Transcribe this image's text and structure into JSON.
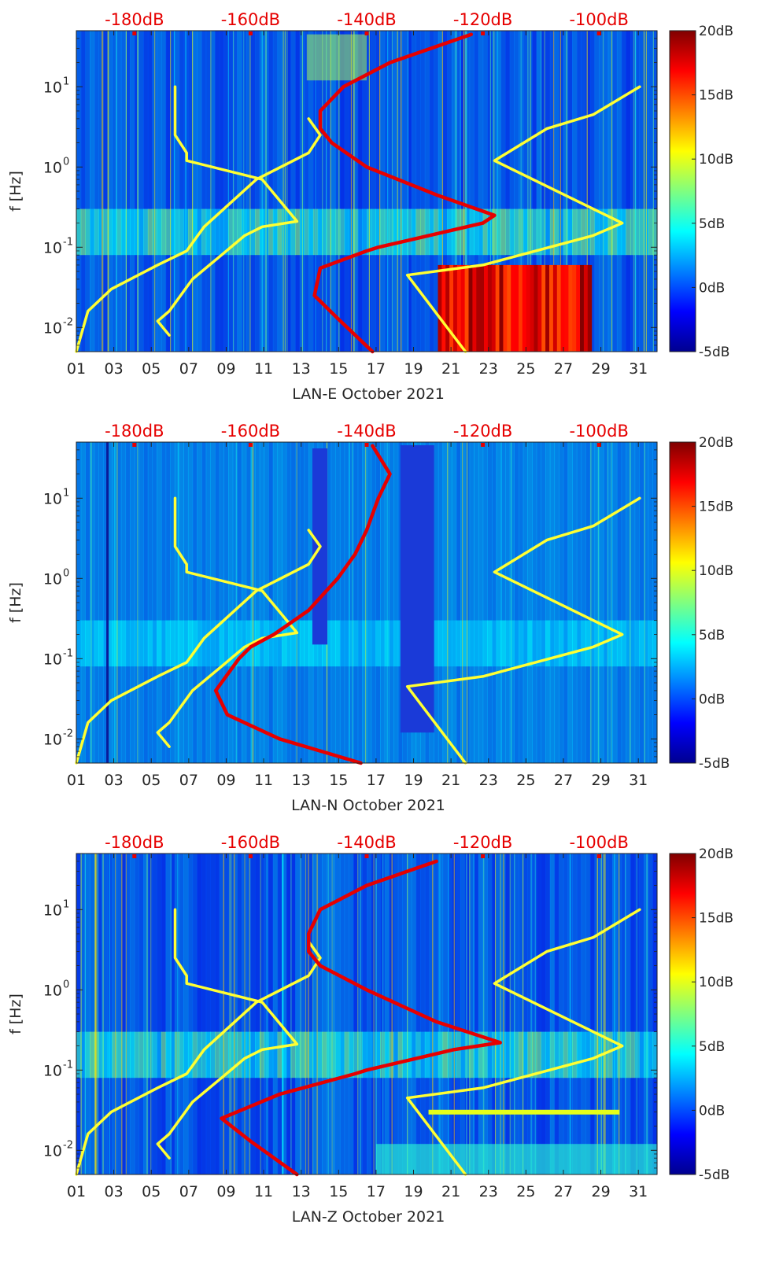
{
  "chart_data": [
    {
      "type": "heatmap",
      "panel": "LAN-E",
      "xlabel": "LAN-E October 2021",
      "ylabel": "f [Hz]",
      "x_ticks": [
        "01",
        "03",
        "05",
        "07",
        "09",
        "11",
        "13",
        "15",
        "17",
        "19",
        "21",
        "23",
        "25",
        "27",
        "29",
        "31"
      ],
      "xlim": [
        1,
        32
      ],
      "y_scale": "log",
      "ylim": [
        0.005,
        50
      ],
      "y_ticks": [
        "10^{-2}",
        "10^{-1}",
        "10^{0}",
        "10^{1}"
      ],
      "top_axis_ticks": [
        "-180dB",
        "-160dB",
        "-140dB",
        "-120dB",
        "-100dB"
      ],
      "top_axis_range_db": [
        -190,
        -90
      ],
      "colorbar": {
        "ticks": [
          "20dB",
          "15dB",
          "10dB",
          "5dB",
          "0dB",
          "-5dB"
        ],
        "range": [
          -5,
          20
        ]
      },
      "overlay_series": [
        {
          "color": "#ffff33",
          "label": "",
          "points": [
            [
              -190,
              0.005
            ],
            [
              -188,
              0.016
            ],
            [
              -184,
              0.03
            ],
            [
              -176,
              0.06
            ],
            [
              -171,
              0.09
            ],
            [
              -168,
              0.18
            ],
            [
              -159,
              0.7
            ],
            [
              -150,
              1.5
            ],
            [
              -148,
              2.5
            ],
            [
              -150,
              4
            ]
          ]
        },
        {
          "color": "#ffff33",
          "label": "",
          "points": [
            [
              -174,
              0.008
            ],
            [
              -176,
              0.012
            ],
            [
              -174,
              0.016
            ],
            [
              -170,
              0.04
            ],
            [
              -165,
              0.08
            ],
            [
              -161,
              0.14
            ],
            [
              -158,
              0.18
            ],
            [
              -152,
              0.21
            ],
            [
              -158,
              0.7
            ],
            [
              -171,
              1.2
            ],
            [
              -171,
              1.5
            ],
            [
              -173,
              2.5
            ],
            [
              -173,
              10
            ]
          ]
        },
        {
          "color": "#ffff33",
          "label": "",
          "points": [
            [
              -123,
              0.005
            ],
            [
              -133,
              0.045
            ],
            [
              -120,
              0.06
            ],
            [
              -101,
              0.14
            ],
            [
              -96,
              0.2
            ],
            [
              -118,
              1.2
            ],
            [
              -109,
              3
            ],
            [
              -101,
              4.5
            ],
            [
              -93,
              10
            ]
          ]
        },
        {
          "color": "#e60000",
          "label": "",
          "points": [
            [
              -139,
              0.005
            ],
            [
              -145,
              0.013
            ],
            [
              -149,
              0.025
            ],
            [
              -148,
              0.055
            ],
            [
              -140,
              0.09
            ],
            [
              -138,
              0.1
            ],
            [
              -120,
              0.2
            ],
            [
              -118,
              0.25
            ],
            [
              -128,
              0.45
            ],
            [
              -140,
              1
            ],
            [
              -146,
              2
            ],
            [
              -148,
              3
            ],
            [
              -148,
              5
            ],
            [
              -144,
              10
            ],
            [
              -136,
              20
            ],
            [
              -122,
              45
            ]
          ]
        }
      ]
    },
    {
      "type": "heatmap",
      "panel": "LAN-N",
      "xlabel": "LAN-N October 2021",
      "ylabel": "f [Hz]",
      "x_ticks": [
        "01",
        "03",
        "05",
        "07",
        "09",
        "11",
        "13",
        "15",
        "17",
        "19",
        "21",
        "23",
        "25",
        "27",
        "29",
        "31"
      ],
      "xlim": [
        1,
        32
      ],
      "y_scale": "log",
      "ylim": [
        0.005,
        50
      ],
      "y_ticks": [
        "10^{-2}",
        "10^{-1}",
        "10^{0}",
        "10^{1}"
      ],
      "top_axis_ticks": [
        "-180dB",
        "-160dB",
        "-140dB",
        "-120dB",
        "-100dB"
      ],
      "top_axis_range_db": [
        -190,
        -90
      ],
      "colorbar": {
        "ticks": [
          "20dB",
          "15dB",
          "10dB",
          "5dB",
          "0dB",
          "-5dB"
        ],
        "range": [
          -5,
          20
        ]
      },
      "overlay_series": [
        {
          "color": "#ffff33",
          "label": "",
          "points": [
            [
              -190,
              0.005
            ],
            [
              -188,
              0.016
            ],
            [
              -184,
              0.03
            ],
            [
              -176,
              0.06
            ],
            [
              -171,
              0.09
            ],
            [
              -168,
              0.18
            ],
            [
              -159,
              0.7
            ],
            [
              -150,
              1.5
            ],
            [
              -148,
              2.5
            ],
            [
              -150,
              4
            ]
          ]
        },
        {
          "color": "#ffff33",
          "label": "",
          "points": [
            [
              -174,
              0.008
            ],
            [
              -176,
              0.012
            ],
            [
              -174,
              0.016
            ],
            [
              -170,
              0.04
            ],
            [
              -165,
              0.08
            ],
            [
              -161,
              0.14
            ],
            [
              -158,
              0.18
            ],
            [
              -152,
              0.21
            ],
            [
              -158,
              0.7
            ],
            [
              -171,
              1.2
            ],
            [
              -171,
              1.5
            ],
            [
              -173,
              2.5
            ],
            [
              -173,
              10
            ]
          ]
        },
        {
          "color": "#ffff33",
          "label": "",
          "points": [
            [
              -123,
              0.005
            ],
            [
              -133,
              0.045
            ],
            [
              -120,
              0.06
            ],
            [
              -101,
              0.14
            ],
            [
              -96,
              0.2
            ],
            [
              -118,
              1.2
            ],
            [
              -109,
              3
            ],
            [
              -101,
              4.5
            ],
            [
              -93,
              10
            ]
          ]
        },
        {
          "color": "#e60000",
          "label": "",
          "points": [
            [
              -141,
              0.005
            ],
            [
              -155,
              0.01
            ],
            [
              -164,
              0.02
            ],
            [
              -166,
              0.04
            ],
            [
              -162,
              0.1
            ],
            [
              -160,
              0.14
            ],
            [
              -156,
              0.2
            ],
            [
              -150,
              0.4
            ],
            [
              -145,
              1
            ],
            [
              -142,
              2
            ],
            [
              -140,
              4
            ],
            [
              -138,
              10
            ],
            [
              -136,
              20
            ],
            [
              -139,
              45
            ]
          ]
        }
      ]
    },
    {
      "type": "heatmap",
      "panel": "LAN-Z",
      "xlabel": "LAN-Z October 2021",
      "ylabel": "f [Hz]",
      "x_ticks": [
        "01",
        "03",
        "05",
        "07",
        "09",
        "11",
        "13",
        "15",
        "17",
        "19",
        "21",
        "23",
        "25",
        "27",
        "29",
        "31"
      ],
      "xlim": [
        1,
        32
      ],
      "y_scale": "log",
      "ylim": [
        0.005,
        50
      ],
      "y_ticks": [
        "10^{-2}",
        "10^{-1}",
        "10^{0}",
        "10^{1}"
      ],
      "top_axis_ticks": [
        "-180dB",
        "-160dB",
        "-140dB",
        "-120dB",
        "-100dB"
      ],
      "top_axis_range_db": [
        -190,
        -90
      ],
      "colorbar": {
        "ticks": [
          "20dB",
          "15dB",
          "10dB",
          "5dB",
          "0dB",
          "-5dB"
        ],
        "range": [
          -5,
          20
        ]
      },
      "overlay_series": [
        {
          "color": "#ffff33",
          "label": "",
          "points": [
            [
              -190,
              0.005
            ],
            [
              -188,
              0.016
            ],
            [
              -184,
              0.03
            ],
            [
              -176,
              0.06
            ],
            [
              -171,
              0.09
            ],
            [
              -168,
              0.18
            ],
            [
              -159,
              0.7
            ],
            [
              -150,
              1.5
            ],
            [
              -148,
              2.5
            ],
            [
              -150,
              4
            ]
          ]
        },
        {
          "color": "#ffff33",
          "label": "",
          "points": [
            [
              -174,
              0.008
            ],
            [
              -176,
              0.012
            ],
            [
              -174,
              0.016
            ],
            [
              -170,
              0.04
            ],
            [
              -165,
              0.08
            ],
            [
              -161,
              0.14
            ],
            [
              -158,
              0.18
            ],
            [
              -152,
              0.21
            ],
            [
              -158,
              0.7
            ],
            [
              -171,
              1.2
            ],
            [
              -171,
              1.5
            ],
            [
              -173,
              2.5
            ],
            [
              -173,
              10
            ]
          ]
        },
        {
          "color": "#ffff33",
          "label": "",
          "points": [
            [
              -123,
              0.005
            ],
            [
              -133,
              0.045
            ],
            [
              -120,
              0.06
            ],
            [
              -101,
              0.14
            ],
            [
              -96,
              0.2
            ],
            [
              -118,
              1.2
            ],
            [
              -109,
              3
            ],
            [
              -101,
              4.5
            ],
            [
              -93,
              10
            ]
          ]
        },
        {
          "color": "#e60000",
          "label": "",
          "points": [
            [
              -152,
              0.005
            ],
            [
              -160,
              0.013
            ],
            [
              -165,
              0.025
            ],
            [
              -155,
              0.05
            ],
            [
              -142,
              0.09
            ],
            [
              -140,
              0.1
            ],
            [
              -125,
              0.18
            ],
            [
              -117,
              0.22
            ],
            [
              -128,
              0.4
            ],
            [
              -140,
              1
            ],
            [
              -148,
              2
            ],
            [
              -150,
              3
            ],
            [
              -150,
              5
            ],
            [
              -148,
              10
            ],
            [
              -140,
              20
            ],
            [
              -128,
              40
            ]
          ]
        }
      ]
    }
  ]
}
